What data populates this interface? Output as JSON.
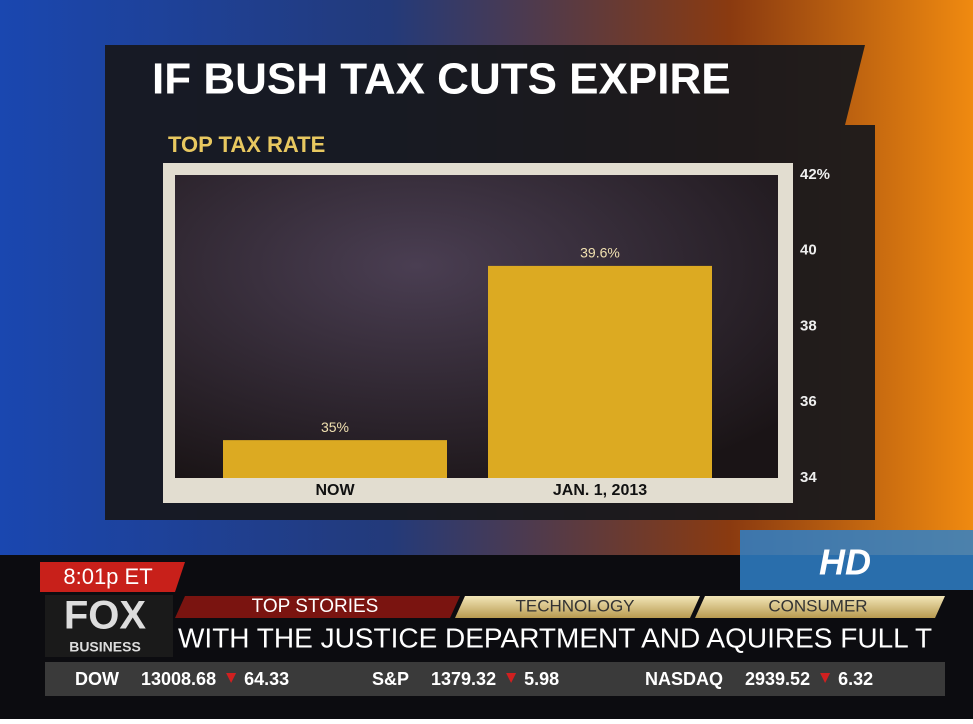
{
  "chart_data": {
    "type": "bar",
    "title": "IF BUSH TAX CUTS EXPIRE",
    "subtitle": "TOP TAX RATE",
    "categories": [
      "NOW",
      "JAN. 1, 2013"
    ],
    "values": [
      35,
      39.6
    ],
    "value_labels": [
      "35%",
      "39.6%"
    ],
    "color": "#dcaa22",
    "ylim": [
      34,
      42
    ],
    "yticks": [
      34,
      36,
      38,
      40,
      {
        "value": 42,
        "label": "42%"
      }
    ]
  },
  "broadcast": {
    "time": "8:01p ET",
    "logo": "FOX",
    "logo_sub": "BUSINESS",
    "hd_badge": "HD",
    "tabs": [
      "TOP STORIES",
      "TECHNOLOGY",
      "CONSUMER"
    ],
    "crawl": "WITH THE JUSTICE DEPARTMENT AND AQUIRES FULL T",
    "markets": [
      {
        "name": "DOW",
        "value": 13008.68,
        "change": 64.33
      },
      {
        "name": "S&P",
        "value": 1379.32,
        "change": 5.98
      },
      {
        "name": "NASDAQ",
        "value": 2939.52,
        "change": 6.32
      }
    ]
  }
}
